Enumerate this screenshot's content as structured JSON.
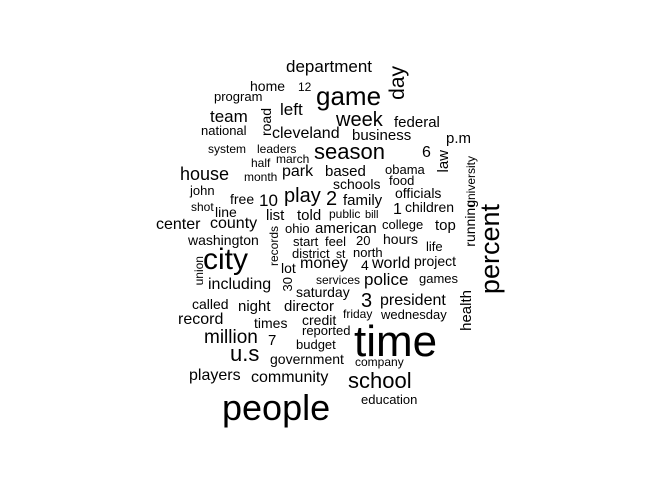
{
  "words": [
    {
      "text": "department",
      "size": 17
    },
    {
      "text": "home",
      "size": 14
    },
    {
      "text": "12",
      "size": 12
    },
    {
      "text": "game",
      "size": 26
    },
    {
      "text": "day",
      "size": 21
    },
    {
      "text": "program",
      "size": 13
    },
    {
      "text": "left",
      "size": 17
    },
    {
      "text": "team",
      "size": 17
    },
    {
      "text": "week",
      "size": 20
    },
    {
      "text": "federal",
      "size": 15
    },
    {
      "text": "road",
      "size": 14
    },
    {
      "text": "national",
      "size": 13
    },
    {
      "text": "cleveland",
      "size": 16
    },
    {
      "text": "business",
      "size": 15
    },
    {
      "text": "p.m",
      "size": 15
    },
    {
      "text": "system",
      "size": 12
    },
    {
      "text": "leaders",
      "size": 12
    },
    {
      "text": "season",
      "size": 22
    },
    {
      "text": "6",
      "size": 16
    },
    {
      "text": "law",
      "size": 15
    },
    {
      "text": "march",
      "size": 12
    },
    {
      "text": "half",
      "size": 12
    },
    {
      "text": "obama",
      "size": 13
    },
    {
      "text": "university",
      "size": 12
    },
    {
      "text": "house",
      "size": 18
    },
    {
      "text": "park",
      "size": 16
    },
    {
      "text": "based",
      "size": 15
    },
    {
      "text": "month",
      "size": 12
    },
    {
      "text": "food",
      "size": 13
    },
    {
      "text": "schools",
      "size": 14
    },
    {
      "text": "john",
      "size": 13
    },
    {
      "text": "play",
      "size": 20
    },
    {
      "text": "officials",
      "size": 14
    },
    {
      "text": "2",
      "size": 20
    },
    {
      "text": "10",
      "size": 17
    },
    {
      "text": "free",
      "size": 14
    },
    {
      "text": "family",
      "size": 15
    },
    {
      "text": "running",
      "size": 14
    },
    {
      "text": "shot",
      "size": 12
    },
    {
      "text": "line",
      "size": 14
    },
    {
      "text": "1",
      "size": 16
    },
    {
      "text": "children",
      "size": 14
    },
    {
      "text": "percent",
      "size": 27
    },
    {
      "text": "list",
      "size": 15
    },
    {
      "text": "told",
      "size": 15
    },
    {
      "text": "public",
      "size": 12
    },
    {
      "text": "bill",
      "size": 11
    },
    {
      "text": "center",
      "size": 16
    },
    {
      "text": "county",
      "size": 16
    },
    {
      "text": "ohio",
      "size": 13
    },
    {
      "text": "american",
      "size": 15
    },
    {
      "text": "college",
      "size": 13
    },
    {
      "text": "top",
      "size": 15
    },
    {
      "text": "records",
      "size": 12
    },
    {
      "text": "washington",
      "size": 14
    },
    {
      "text": "start",
      "size": 13
    },
    {
      "text": "feel",
      "size": 13
    },
    {
      "text": "20",
      "size": 13
    },
    {
      "text": "hours",
      "size": 14
    },
    {
      "text": "life",
      "size": 13
    },
    {
      "text": "district",
      "size": 13
    },
    {
      "text": "st",
      "size": 12
    },
    {
      "text": "north",
      "size": 13
    },
    {
      "text": "city",
      "size": 30
    },
    {
      "text": "project",
      "size": 14
    },
    {
      "text": "union",
      "size": 12
    },
    {
      "text": "lot",
      "size": 14
    },
    {
      "text": "money",
      "size": 16
    },
    {
      "text": "4",
      "size": 14
    },
    {
      "text": "world",
      "size": 16
    },
    {
      "text": "games",
      "size": 13
    },
    {
      "text": "services",
      "size": 12
    },
    {
      "text": "police",
      "size": 17
    },
    {
      "text": "30",
      "size": 13
    },
    {
      "text": "including",
      "size": 16
    },
    {
      "text": "saturday",
      "size": 14
    },
    {
      "text": "3",
      "size": 20
    },
    {
      "text": "president",
      "size": 16
    },
    {
      "text": "health",
      "size": 15
    },
    {
      "text": "called",
      "size": 14
    },
    {
      "text": "night",
      "size": 15
    },
    {
      "text": "director",
      "size": 15
    },
    {
      "text": "friday",
      "size": 12
    },
    {
      "text": "wednesday",
      "size": 13
    },
    {
      "text": "record",
      "size": 16
    },
    {
      "text": "times",
      "size": 14
    },
    {
      "text": "credit",
      "size": 14
    },
    {
      "text": "reported",
      "size": 13
    },
    {
      "text": "million",
      "size": 19
    },
    {
      "text": "7",
      "size": 15
    },
    {
      "text": "budget",
      "size": 13
    },
    {
      "text": "time",
      "size": 44
    },
    {
      "text": "u.s",
      "size": 22
    },
    {
      "text": "government",
      "size": 14
    },
    {
      "text": "company",
      "size": 12
    },
    {
      "text": "players",
      "size": 16
    },
    {
      "text": "community",
      "size": 16
    },
    {
      "text": "school",
      "size": 22
    },
    {
      "text": "education",
      "size": 13
    },
    {
      "text": "people",
      "size": 36
    }
  ]
}
